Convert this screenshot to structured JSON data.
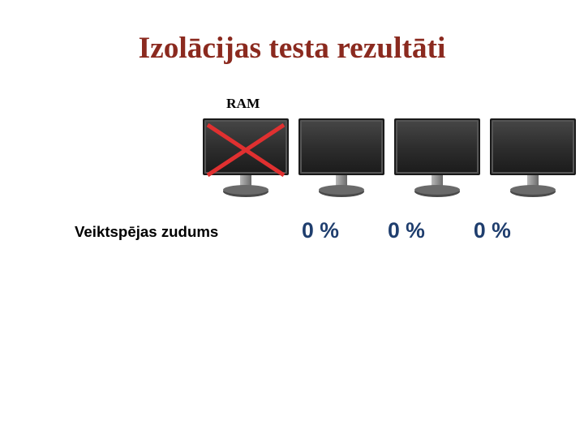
{
  "title": {
    "text": "Izolācijas testa rezultāti",
    "color": "#8b2a1f",
    "font_size_pt": 28
  },
  "ram_label": {
    "text": "RAM",
    "color": "#000000",
    "font_size_pt": 13
  },
  "monitor_row": {
    "count": 4,
    "crossed_index": 0,
    "monitor": {
      "screen_fill": "#2e2e2e",
      "screen_highlight": "#454545",
      "bezel_outer": "#1a1a1a",
      "bezel_inner": "#555555",
      "stand_light": "#b8b8b8",
      "stand_dark": "#6a6a6a",
      "base_fill": "#4a4a4a"
    },
    "cross": {
      "color": "#e03030",
      "stroke_width": 5
    }
  },
  "performance_loss": {
    "label": "Veiktspējas zudums",
    "label_color": "#000000",
    "label_font_size_pt": 14,
    "values": [
      "0 %",
      "0 %",
      "0 %"
    ],
    "value_color": "#1f3e6e",
    "value_font_size_pt": 20
  },
  "background_color": "#ffffff"
}
